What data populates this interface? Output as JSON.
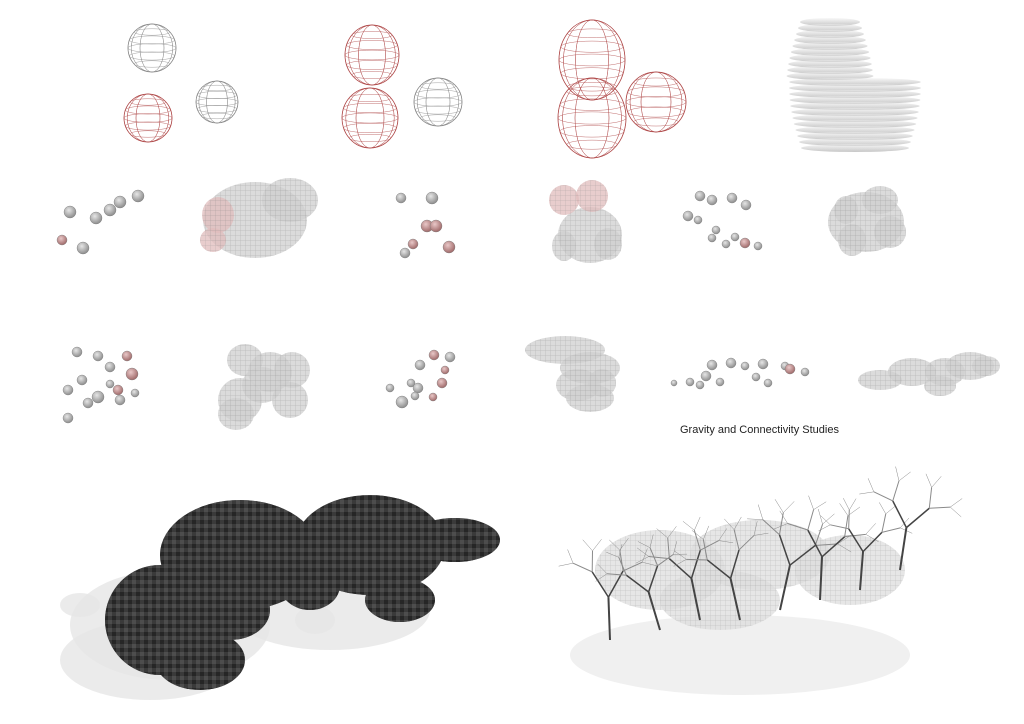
{
  "caption": "Gravity and Connectivity Studies",
  "colors": {
    "wire_gray": "#8a8a8a",
    "wire_red": "#b04a4a",
    "dark_mesh": "#2b2b2b",
    "light_fill": "#d8d8d8",
    "background": "#ffffff"
  },
  "panels": [
    "three-sphere-wireframe",
    "two-sphere-merge-wireframe",
    "merged-blob-wireframe",
    "sliced-contour-blob",
    "scatter-study-1",
    "blob-study-1",
    "scatter-study-2",
    "blob-study-2",
    "scatter-study-3",
    "blob-study-3",
    "scatter-study-4",
    "blob-study-4",
    "scatter-study-5",
    "blob-study-5",
    "scatter-study-6",
    "blob-study-6",
    "dark-mesh-render",
    "branching-structure-render"
  ]
}
